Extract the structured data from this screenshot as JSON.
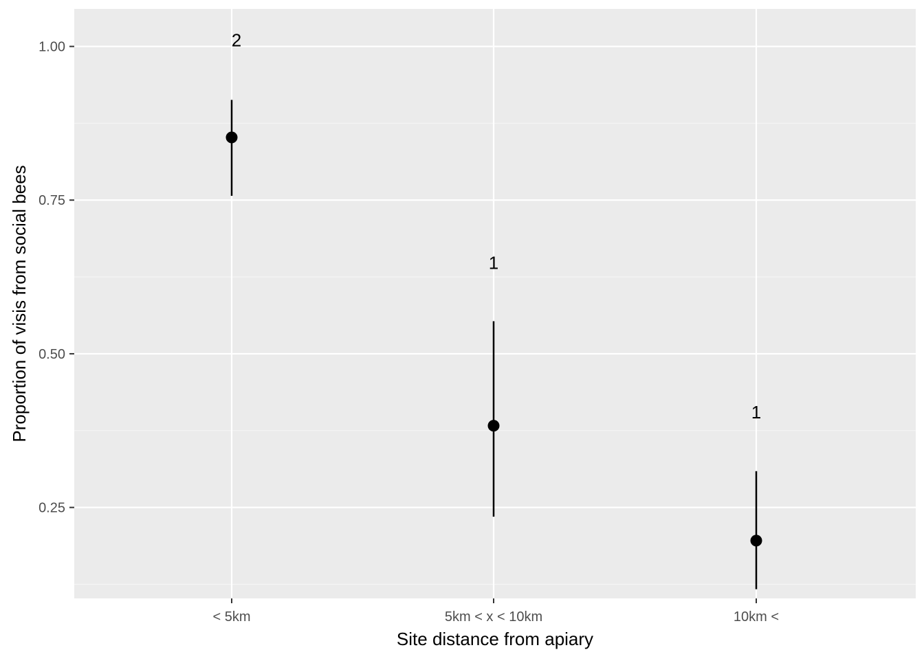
{
  "chart_data": {
    "type": "scatter",
    "subtype": "point-range",
    "title": "",
    "xlabel": "Site distance from apiary",
    "ylabel": "Proportion of visis from social bees",
    "categories": [
      "< 5km",
      "5km < x < 10km",
      "10km <"
    ],
    "points": [
      {
        "category": "< 5km",
        "value": 0.852,
        "lower": 0.757,
        "upper": 0.913,
        "group_label": "2"
      },
      {
        "category": "5km < x < 10km",
        "value": 0.383,
        "lower": 0.235,
        "upper": 0.553,
        "group_label": "1"
      },
      {
        "category": "10km <",
        "value": 0.196,
        "lower": 0.117,
        "upper": 0.309,
        "group_label": "1"
      }
    ],
    "group_label_values": [
      1.01,
      0.648,
      0.405
    ],
    "ylim": [
      0.102,
      1.061
    ],
    "yticks": [
      0.25,
      0.5,
      0.75,
      1.0
    ],
    "ytick_labels": [
      "0.25",
      "0.50",
      "0.75",
      "1.00"
    ],
    "grid": true,
    "legend": "none",
    "colors": {
      "panel_background": "#ebebeb",
      "grid_major": "#ffffff",
      "grid_minor": "#f5f5f5",
      "point": "#000000",
      "tick_text": "#4d4d4d",
      "axis_title": "#000000"
    }
  }
}
